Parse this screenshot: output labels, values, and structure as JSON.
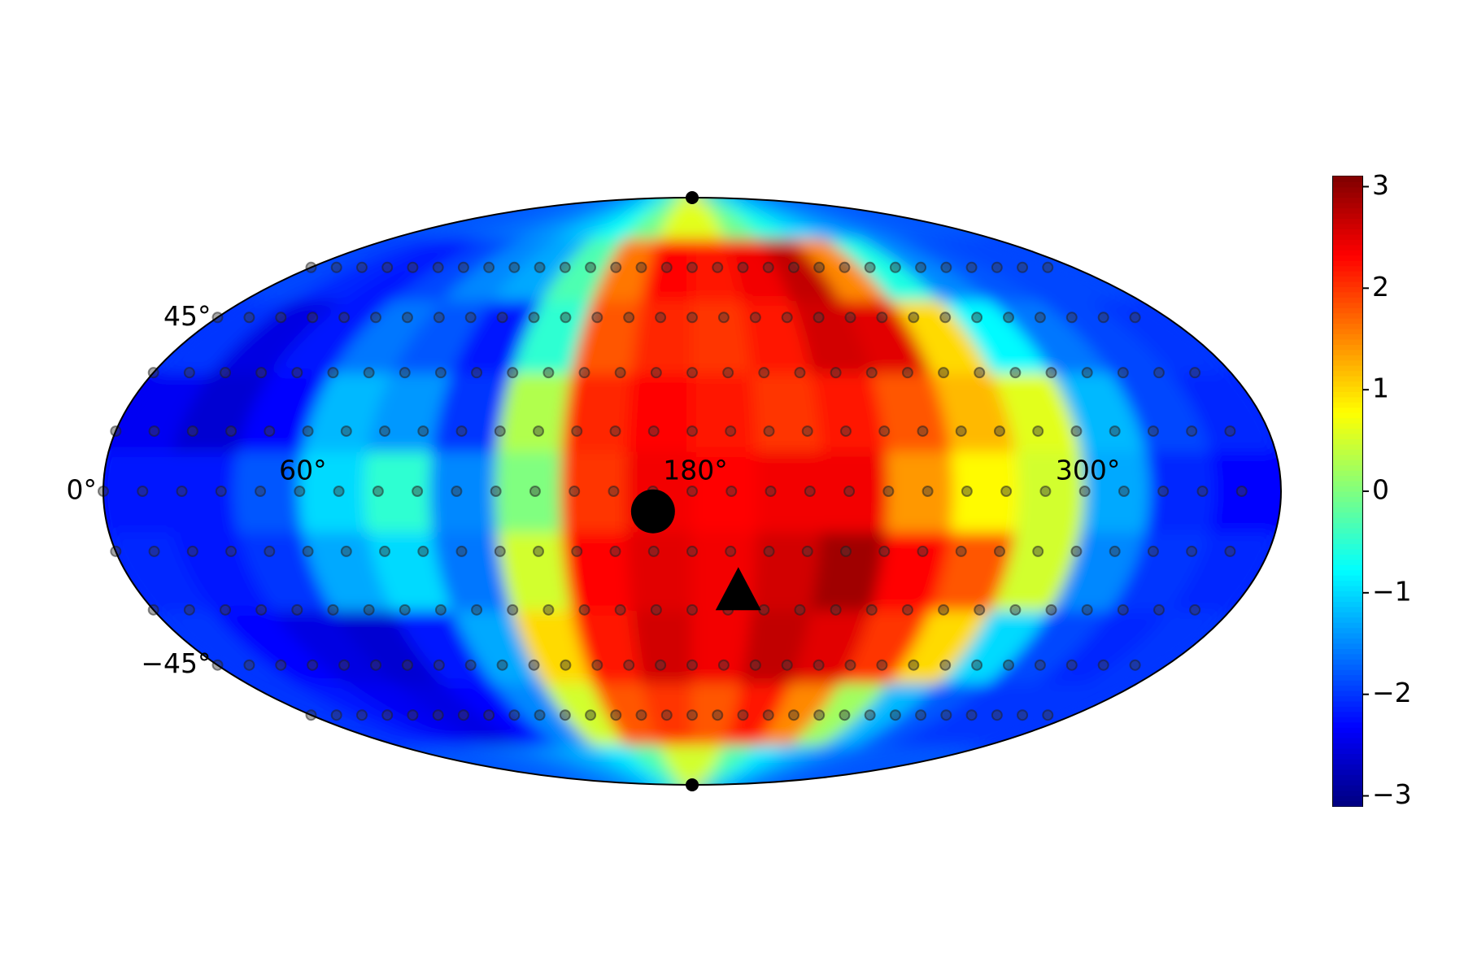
{
  "chart_data": {
    "type": "heatmap",
    "projection": "mollweide",
    "colormap": "jet",
    "lon": [
      10,
      30,
      50,
      70,
      90,
      110,
      130,
      150,
      170,
      190,
      210,
      230,
      250,
      270,
      290,
      310,
      330,
      350
    ],
    "lat": [
      -80,
      -60,
      -40,
      -20,
      0,
      20,
      40,
      60,
      80
    ],
    "values": [
      [
        -1.8,
        -1.8,
        -1.7,
        -1.6,
        -1.4,
        -1.2,
        -0.9,
        -0.3,
        0.5,
        0.5,
        -0.3,
        -0.9,
        -1.2,
        -1.5,
        -1.7,
        -1.8,
        -1.8,
        -1.8
      ],
      [
        -2.0,
        -2.2,
        -2.4,
        -2.5,
        -2.3,
        -1.5,
        0.5,
        1.8,
        2.0,
        1.8,
        2.2,
        1.5,
        0.2,
        -1.2,
        -1.8,
        -2.0,
        -2.0,
        -2.0
      ],
      [
        -2.0,
        -2.3,
        -2.5,
        -2.6,
        -2.2,
        -1.3,
        1.0,
        2.2,
        2.6,
        2.4,
        2.7,
        2.5,
        2.0,
        1.0,
        -1.0,
        -1.9,
        -2.1,
        -2.0
      ],
      [
        -2.1,
        -2.2,
        -2.0,
        -1.3,
        -1.0,
        -1.6,
        0.5,
        2.3,
        2.5,
        2.4,
        2.6,
        2.9,
        2.3,
        1.8,
        0.5,
        -1.5,
        -2.0,
        -2.1
      ],
      [
        -2.2,
        -2.2,
        -1.8,
        -1.0,
        -0.5,
        -1.5,
        0.0,
        2.0,
        2.4,
        2.3,
        2.4,
        2.4,
        1.4,
        0.8,
        0.5,
        -1.3,
        -2.1,
        -2.3
      ],
      [
        -2.4,
        -2.6,
        -2.3,
        -1.2,
        -1.4,
        -2.0,
        0.3,
        2.1,
        2.3,
        2.2,
        2.0,
        2.2,
        1.8,
        1.2,
        0.6,
        -1.2,
        -1.9,
        -2.1
      ],
      [
        -2.0,
        -2.5,
        -2.2,
        -1.6,
        -1.8,
        -2.2,
        -0.5,
        1.8,
        2.1,
        2.0,
        2.2,
        2.6,
        2.5,
        1.0,
        -0.8,
        -1.6,
        -1.9,
        -2.0
      ],
      [
        -1.9,
        -2.1,
        -2.2,
        -1.9,
        -1.5,
        -1.3,
        -0.3,
        1.6,
        2.3,
        2.2,
        2.4,
        2.7,
        1.5,
        -0.6,
        -1.5,
        -1.8,
        -1.9,
        -1.9
      ],
      [
        -1.8,
        -1.8,
        -1.7,
        -1.6,
        -1.4,
        -1.1,
        -0.7,
        -0.1,
        0.6,
        0.6,
        -0.1,
        -0.6,
        -1.0,
        -1.3,
        -1.5,
        -1.7,
        -1.8,
        -1.8
      ]
    ],
    "clim": [
      -3.1,
      3.1
    ],
    "colorbar_ticks": [
      {
        "value": -3,
        "label": "−3"
      },
      {
        "value": -2,
        "label": "−2"
      },
      {
        "value": -1,
        "label": "−1"
      },
      0,
      1,
      2,
      3
    ],
    "xticks": [
      {
        "value": 60,
        "label": "60°"
      },
      {
        "value": 180,
        "label": "180°"
      },
      {
        "value": 300,
        "label": "300°"
      }
    ],
    "yticks": [
      {
        "value": -45,
        "label": "−45°"
      },
      {
        "value": 0,
        "label": "0°"
      },
      {
        "value": 45,
        "label": "45°"
      }
    ],
    "sample_lat": [
      -60,
      -45,
      -30,
      -15,
      0,
      15,
      30,
      45,
      60
    ],
    "sample_lon": [
      0,
      12,
      24,
      36,
      48,
      60,
      72,
      84,
      96,
      108,
      120,
      132,
      144,
      156,
      168,
      180,
      192,
      204,
      216,
      228,
      240,
      252,
      264,
      276,
      288,
      300,
      312,
      324,
      336,
      348
    ],
    "markers": [
      {
        "shape": "circle",
        "lon": 168,
        "lat": -5
      },
      {
        "shape": "triangle",
        "lon": 195,
        "lat": -25
      },
      {
        "shape": "dot",
        "lon": 180,
        "lat": 90
      },
      {
        "shape": "dot",
        "lon": 180,
        "lat": -90
      }
    ]
  }
}
